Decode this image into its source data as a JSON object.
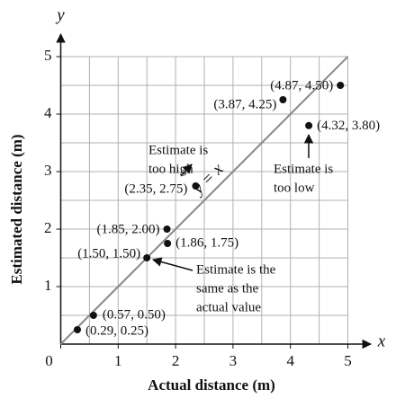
{
  "chart_data": {
    "type": "scatter",
    "x_label": "Actual distance (m)",
    "y_label": "Estimated distance (m)",
    "x_symbol": "x",
    "y_symbol": "y",
    "line_label": "y = x",
    "xlim": [
      0,
      5
    ],
    "ylim": [
      0,
      5
    ],
    "xticks": [
      0,
      1,
      2,
      3,
      4,
      5
    ],
    "yticks": [
      1,
      2,
      3,
      4,
      5
    ],
    "grid": [
      0.5,
      1,
      1.5,
      2,
      2.5,
      3,
      3.5,
      4,
      4.5,
      5
    ],
    "color": "#111111",
    "line_color": "#888888",
    "x": [
      0.29,
      0.57,
      1.5,
      1.85,
      1.86,
      2.35,
      3.87,
      4.87,
      4.32
    ],
    "values": [
      0.25,
      0.5,
      1.5,
      2.0,
      1.75,
      2.75,
      4.25,
      4.5,
      3.8
    ],
    "value_labels": [
      "(0.29, 0.25)",
      "(0.57, 0.50)",
      "(1.50, 1.50)",
      "(1.85, 2.00)",
      "(1.86, 1.75)",
      "(2.35, 2.75)",
      "(3.87, 4.25)",
      "(4.87, 4.50)",
      "(4.32, 3.80)"
    ],
    "annotations": [
      {
        "lines": [
          "Estimate is",
          "too high"
        ]
      },
      {
        "lines": [
          "Estimate is",
          "too low"
        ]
      },
      {
        "lines": [
          "Estimate is the",
          "same as the",
          "actual value"
        ]
      }
    ]
  }
}
